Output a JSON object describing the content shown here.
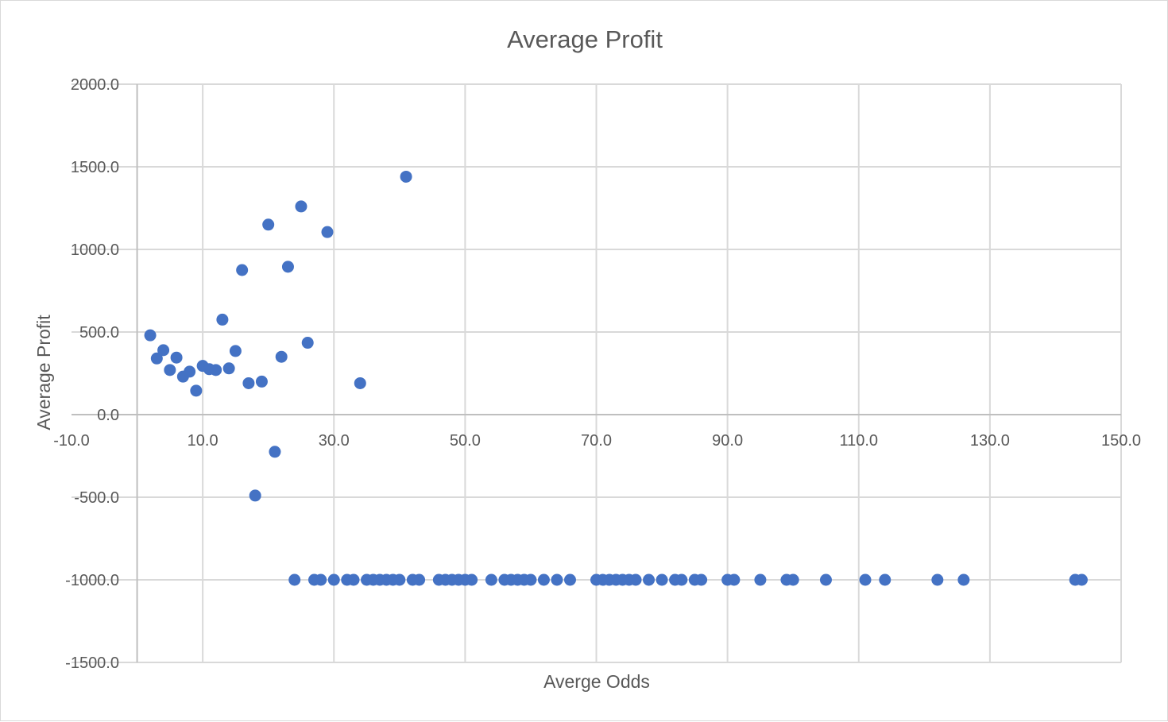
{
  "chart_data": {
    "type": "scatter",
    "title": "Average Profit",
    "xlabel": "Averge Odds",
    "ylabel": "Average Profit",
    "xlim": [
      -10,
      150
    ],
    "ylim": [
      -1500,
      2000
    ],
    "x_ticks": [
      -10,
      10,
      30,
      50,
      70,
      90,
      110,
      130,
      150
    ],
    "y_ticks": [
      -1500,
      -1000,
      -500,
      0,
      500,
      1000,
      1500,
      2000
    ],
    "x_tick_labels": [
      "-10.0",
      "10.0",
      "30.0",
      "50.0",
      "70.0",
      "90.0",
      "110.0",
      "130.0",
      "150.0"
    ],
    "y_tick_labels": [
      "-1500.0",
      "-1000.0",
      "-500.0",
      "0.0",
      "500.0",
      "1000.0",
      "1500.0",
      "2000.0"
    ],
    "grid": true,
    "legend": "none",
    "marker_color": "#4472c4",
    "points": [
      [
        2,
        480
      ],
      [
        3,
        340
      ],
      [
        4,
        390
      ],
      [
        5,
        270
      ],
      [
        6,
        345
      ],
      [
        7,
        230
      ],
      [
        8,
        260
      ],
      [
        9,
        145
      ],
      [
        10,
        295
      ],
      [
        11,
        275
      ],
      [
        12,
        270
      ],
      [
        13,
        575
      ],
      [
        14,
        280
      ],
      [
        15,
        385
      ],
      [
        16,
        875
      ],
      [
        17,
        190
      ],
      [
        18,
        -490
      ],
      [
        19,
        200
      ],
      [
        20,
        1150
      ],
      [
        21,
        -225
      ],
      [
        22,
        350
      ],
      [
        23,
        895
      ],
      [
        25,
        1260
      ],
      [
        26,
        435
      ],
      [
        29,
        1105
      ],
      [
        34,
        190
      ],
      [
        41,
        1440
      ],
      [
        24,
        -1000
      ],
      [
        27,
        -1000
      ],
      [
        28,
        -1000
      ],
      [
        30,
        -1000
      ],
      [
        32,
        -1000
      ],
      [
        33,
        -1000
      ],
      [
        35,
        -1000
      ],
      [
        36,
        -1000
      ],
      [
        37,
        -1000
      ],
      [
        38,
        -1000
      ],
      [
        39,
        -1000
      ],
      [
        40,
        -1000
      ],
      [
        42,
        -1000
      ],
      [
        43,
        -1000
      ],
      [
        46,
        -1000
      ],
      [
        47,
        -1000
      ],
      [
        48,
        -1000
      ],
      [
        49,
        -1000
      ],
      [
        50,
        -1000
      ],
      [
        51,
        -1000
      ],
      [
        54,
        -1000
      ],
      [
        56,
        -1000
      ],
      [
        57,
        -1000
      ],
      [
        58,
        -1000
      ],
      [
        59,
        -1000
      ],
      [
        60,
        -1000
      ],
      [
        62,
        -1000
      ],
      [
        64,
        -1000
      ],
      [
        66,
        -1000
      ],
      [
        70,
        -1000
      ],
      [
        71,
        -1000
      ],
      [
        72,
        -1000
      ],
      [
        73,
        -1000
      ],
      [
        74,
        -1000
      ],
      [
        75,
        -1000
      ],
      [
        76,
        -1000
      ],
      [
        78,
        -1000
      ],
      [
        80,
        -1000
      ],
      [
        82,
        -1000
      ],
      [
        83,
        -1000
      ],
      [
        85,
        -1000
      ],
      [
        86,
        -1000
      ],
      [
        90,
        -1000
      ],
      [
        91,
        -1000
      ],
      [
        95,
        -1000
      ],
      [
        99,
        -1000
      ],
      [
        100,
        -1000
      ],
      [
        105,
        -1000
      ],
      [
        111,
        -1000
      ],
      [
        114,
        -1000
      ],
      [
        122,
        -1000
      ],
      [
        126,
        -1000
      ],
      [
        143,
        -1000
      ],
      [
        144,
        -1000
      ]
    ]
  }
}
